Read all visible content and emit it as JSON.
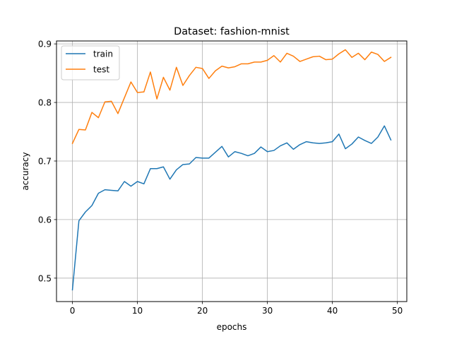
{
  "chart_data": {
    "type": "line",
    "title": "Dataset: fashion-mnist",
    "xlabel": "epochs",
    "ylabel": "accuracy",
    "xlim": [
      -2.45,
      51.45
    ],
    "ylim": [
      0.46,
      0.905
    ],
    "xticks": [
      0,
      10,
      20,
      30,
      40,
      50
    ],
    "yticks": [
      0.5,
      0.6,
      0.7,
      0.8,
      0.9
    ],
    "xtick_labels": [
      "0",
      "10",
      "20",
      "30",
      "40",
      "50"
    ],
    "ytick_labels": [
      "0.5",
      "0.6",
      "0.7",
      "0.8",
      "0.9"
    ],
    "grid": true,
    "legend_position": "upper-left",
    "x": [
      0,
      1,
      2,
      3,
      4,
      5,
      6,
      7,
      8,
      9,
      10,
      11,
      12,
      13,
      14,
      15,
      16,
      17,
      18,
      19,
      20,
      21,
      22,
      23,
      24,
      25,
      26,
      27,
      28,
      29,
      30,
      31,
      32,
      33,
      34,
      35,
      36,
      37,
      38,
      39,
      40,
      41,
      42,
      43,
      44,
      45,
      46,
      47,
      48,
      49
    ],
    "series": [
      {
        "name": "train",
        "color": "#1f77b4",
        "values": [
          0.48,
          0.598,
          0.613,
          0.624,
          0.645,
          0.651,
          0.65,
          0.649,
          0.665,
          0.657,
          0.665,
          0.661,
          0.687,
          0.687,
          0.69,
          0.669,
          0.685,
          0.694,
          0.695,
          0.706,
          0.705,
          0.705,
          0.715,
          0.725,
          0.707,
          0.716,
          0.713,
          0.709,
          0.713,
          0.724,
          0.716,
          0.718,
          0.726,
          0.731,
          0.72,
          0.728,
          0.733,
          0.731,
          0.73,
          0.731,
          0.733,
          0.746,
          0.721,
          0.729,
          0.741,
          0.735,
          0.73,
          0.741,
          0.76,
          0.736
        ]
      },
      {
        "name": "test",
        "color": "#ff7f0e",
        "values": [
          0.73,
          0.754,
          0.753,
          0.783,
          0.774,
          0.801,
          0.802,
          0.781,
          0.808,
          0.835,
          0.817,
          0.818,
          0.852,
          0.806,
          0.843,
          0.821,
          0.86,
          0.829,
          0.846,
          0.86,
          0.858,
          0.841,
          0.854,
          0.862,
          0.859,
          0.861,
          0.866,
          0.866,
          0.869,
          0.869,
          0.872,
          0.88,
          0.869,
          0.884,
          0.879,
          0.87,
          0.874,
          0.878,
          0.879,
          0.873,
          0.874,
          0.883,
          0.89,
          0.877,
          0.884,
          0.873,
          0.886,
          0.882,
          0.87,
          0.877
        ]
      }
    ]
  }
}
